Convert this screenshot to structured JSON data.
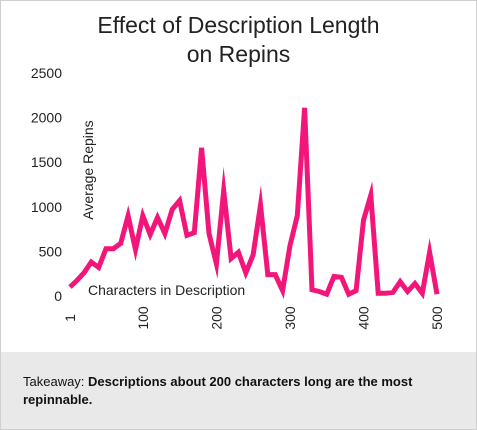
{
  "chart_data": {
    "type": "line",
    "title_lines": [
      "Effect of Description Length",
      "on Repins"
    ],
    "xlabel": "Characters in Description",
    "ylabel": "Average Repins",
    "ylim": [
      0,
      2500
    ],
    "xlim": [
      1,
      500
    ],
    "y_ticks": [
      0,
      500,
      1000,
      1500,
      2000,
      2500
    ],
    "x_ticks": [
      1,
      100,
      200,
      300,
      400,
      500
    ],
    "grid": false,
    "line_color": "#f2167a",
    "series": [
      {
        "x": [
          1,
          10,
          20,
          30,
          40,
          50,
          60,
          70,
          80,
          90,
          100,
          110,
          120,
          130,
          140,
          150,
          160,
          170,
          180,
          190,
          200,
          210,
          220,
          230,
          240,
          250,
          260,
          270,
          280,
          290,
          300,
          310,
          320,
          330,
          340,
          350,
          360,
          370,
          380,
          390,
          400,
          410,
          420,
          430,
          440,
          450,
          460,
          470,
          480,
          490,
          500
        ],
        "y": [
          100,
          170,
          260,
          380,
          320,
          530,
          530,
          590,
          900,
          520,
          900,
          690,
          880,
          700,
          970,
          1070,
          680,
          710,
          1660,
          700,
          360,
          1180,
          420,
          490,
          260,
          460,
          1020,
          240,
          240,
          60,
          560,
          900,
          2110,
          70,
          50,
          20,
          220,
          210,
          20,
          60,
          850,
          1130,
          30,
          30,
          40,
          160,
          50,
          140,
          30,
          490,
          20
        ]
      }
    ]
  },
  "takeaway": {
    "prefix": "Takeaway: ",
    "text": "Descriptions about 200 characters long are the most repinnable."
  }
}
